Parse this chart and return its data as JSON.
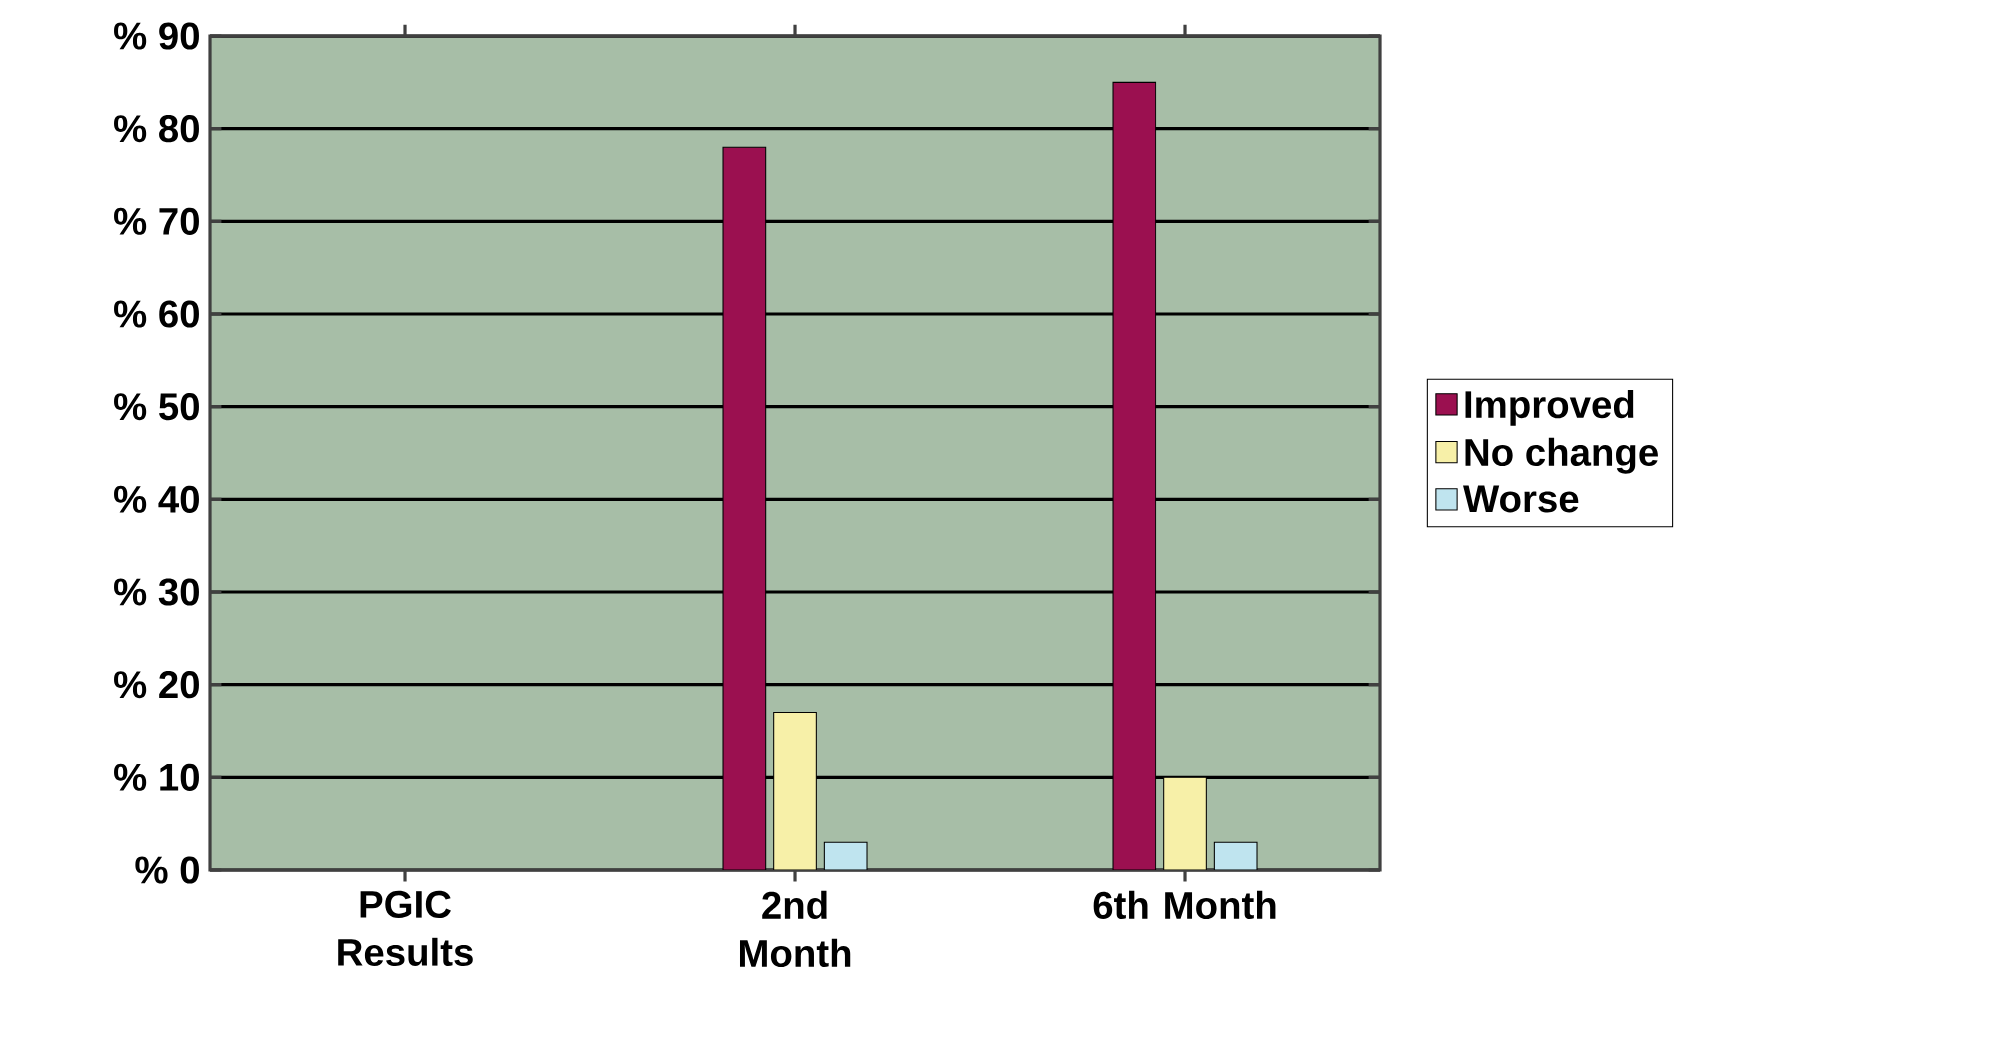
{
  "chart_data": {
    "type": "bar",
    "categories": [
      "PGIC Results",
      "2nd Month",
      "6th Month"
    ],
    "series": [
      {
        "name": "Improved",
        "color": "#9b1050",
        "values": [
          null,
          78,
          85
        ]
      },
      {
        "name": "No change",
        "color": "#f7f0a8",
        "values": [
          null,
          17,
          10
        ]
      },
      {
        "name": "Worse",
        "color": "#bfe4ef",
        "values": [
          null,
          3,
          3
        ]
      }
    ],
    "ylim": [
      0,
      90
    ],
    "yticks": [
      {
        "value": 0,
        "label": "% 0"
      },
      {
        "value": 10,
        "label": "% 10"
      },
      {
        "value": 20,
        "label": "% 20"
      },
      {
        "value": 30,
        "label": "% 30"
      },
      {
        "value": 40,
        "label": "% 40"
      },
      {
        "value": 50,
        "label": "% 50"
      },
      {
        "value": 60,
        "label": "% 60"
      },
      {
        "value": 70,
        "label": "% 70"
      },
      {
        "value": 80,
        "label": "% 80"
      },
      {
        "value": 90,
        "label": "% 90"
      }
    ],
    "grid": "y",
    "legend": "right"
  }
}
